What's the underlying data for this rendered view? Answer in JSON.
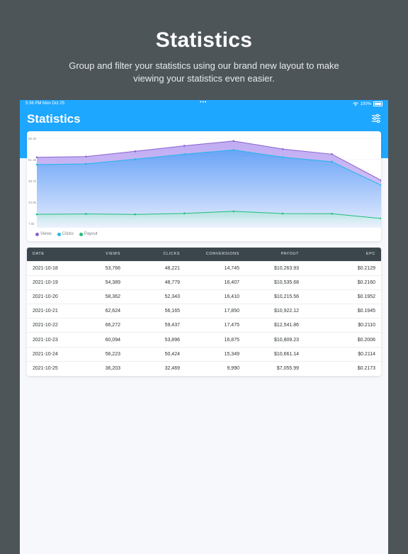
{
  "promo": {
    "title": "Statistics",
    "subtitle": "Group and filter your statistics using our brand new layout to make viewing your statistics even easier."
  },
  "status_bar": {
    "time_date": "5:36 PM  Mon Oct 25",
    "dots": "•••",
    "battery": "100%"
  },
  "app": {
    "title": "Statistics",
    "filter_icon": "sliders-icon",
    "accent_color": "#1ea7ff"
  },
  "chart_data": {
    "type": "area",
    "x": [
      "2021-10-18",
      "2021-10-19",
      "2021-10-20",
      "2021-10-21",
      "2021-10-22",
      "2021-10-23",
      "2021-10-24",
      "2021-10-25"
    ],
    "y_ticks": [
      "68.3k",
      "51.3k",
      "38.7k",
      "23.9k",
      "7.5k"
    ],
    "ylim": [
      0,
      68300
    ],
    "grid": true,
    "legend_position": "bottom-left",
    "series": [
      {
        "name": "Views",
        "color": "#8a63d2",
        "values": [
          53766,
          54389,
          58362,
          62624,
          66272,
          60094,
          56223,
          36203
        ]
      },
      {
        "name": "Clicks",
        "color": "#22b8e8",
        "values": [
          48221,
          48779,
          52343,
          56165,
          59437,
          53896,
          50424,
          32469
        ]
      },
      {
        "name": "Payout",
        "color": "#1fbf7a",
        "values": [
          10263.93,
          10535.68,
          10215.56,
          10922.12,
          12541.86,
          10809.23,
          10661.14,
          7055.99
        ]
      }
    ]
  },
  "table": {
    "headers": [
      "DATE",
      "VIEWS",
      "CLICKS",
      "CONVERSIONS",
      "PAYOUT",
      "EPC"
    ],
    "rows": [
      [
        "2021-10-18",
        "53,766",
        "48,221",
        "14,745",
        "$10,263.93",
        "$0.2129"
      ],
      [
        "2021-10-19",
        "54,389",
        "48,779",
        "16,407",
        "$10,535.68",
        "$0.2160"
      ],
      [
        "2021-10-20",
        "58,362",
        "52,343",
        "16,410",
        "$10,215.56",
        "$0.1952"
      ],
      [
        "2021-10-21",
        "62,624",
        "56,165",
        "17,850",
        "$10,922.12",
        "$0.1945"
      ],
      [
        "2021-10-22",
        "66,272",
        "59,437",
        "17,475",
        "$12,541.86",
        "$0.2110"
      ],
      [
        "2021-10-23",
        "60,094",
        "53,896",
        "16,875",
        "$10,809.23",
        "$0.2006"
      ],
      [
        "2021-10-24",
        "56,223",
        "50,424",
        "15,349",
        "$10,661.14",
        "$0.2114"
      ],
      [
        "2021-10-25",
        "36,203",
        "32,469",
        "9,990",
        "$7,055.99",
        "$0.2173"
      ]
    ]
  }
}
